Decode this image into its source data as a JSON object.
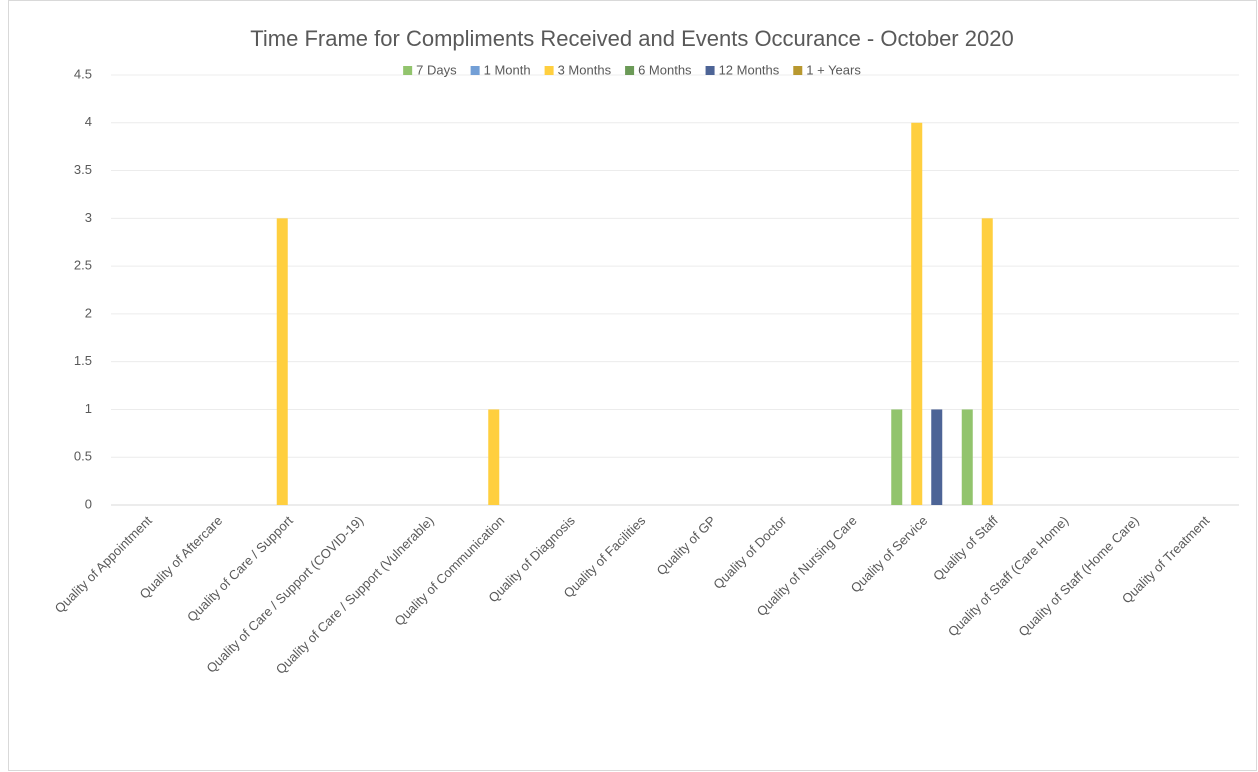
{
  "chart_data": {
    "type": "bar",
    "title": "Time Frame for Compliments Received and Events Occurance - October 2020",
    "categories": [
      "Quality of Appointment",
      "Quality of Aftercare",
      "Quality of Care / Support",
      "Quality of Care / Support (COVID-19)",
      "Quality of Care / Support (Vulnerable)",
      "Quality of Communication",
      "Quality of Diagnosis",
      "Quality of Facilities",
      "Quality of GP",
      "Quality of Doctor",
      "Quality of Nursing Care",
      "Quality of Service",
      "Quality of Staff",
      "Quality of Staff (Care Home)",
      "Quality of Staff (Home Care)",
      "Quality of Treatment"
    ],
    "series": [
      {
        "name": "7 Days",
        "color": "#92c46d",
        "values": [
          0,
          0,
          0,
          0,
          0,
          0,
          0,
          0,
          0,
          0,
          0,
          1,
          1,
          0,
          0,
          0
        ]
      },
      {
        "name": "1 Month",
        "color": "#739fd6",
        "values": [
          0,
          0,
          0,
          0,
          0,
          0,
          0,
          0,
          0,
          0,
          0,
          0,
          0,
          0,
          0,
          0
        ]
      },
      {
        "name": "3 Months",
        "color": "#ffcf3f",
        "values": [
          0,
          0,
          3,
          0,
          0,
          1,
          0,
          0,
          0,
          0,
          0,
          4,
          3,
          0,
          0,
          0
        ]
      },
      {
        "name": "6 Months",
        "color": "#6b9a57",
        "values": [
          0,
          0,
          0,
          0,
          0,
          0,
          0,
          0,
          0,
          0,
          0,
          0,
          0,
          0,
          0,
          0
        ]
      },
      {
        "name": "12 Months",
        "color": "#4d6496",
        "values": [
          0,
          0,
          0,
          0,
          0,
          0,
          0,
          0,
          0,
          0,
          0,
          1,
          0,
          0,
          0,
          0
        ]
      },
      {
        "name": "1 + Years",
        "color": "#b8982f",
        "values": [
          0,
          0,
          0,
          0,
          0,
          0,
          0,
          0,
          0,
          0,
          0,
          0,
          0,
          0,
          0,
          0
        ]
      }
    ],
    "ylim": [
      0,
      4.5
    ],
    "yticks": [
      0,
      0.5,
      1,
      1.5,
      2,
      2.5,
      3,
      3.5,
      4,
      4.5
    ],
    "grid": true,
    "legend": "top"
  }
}
